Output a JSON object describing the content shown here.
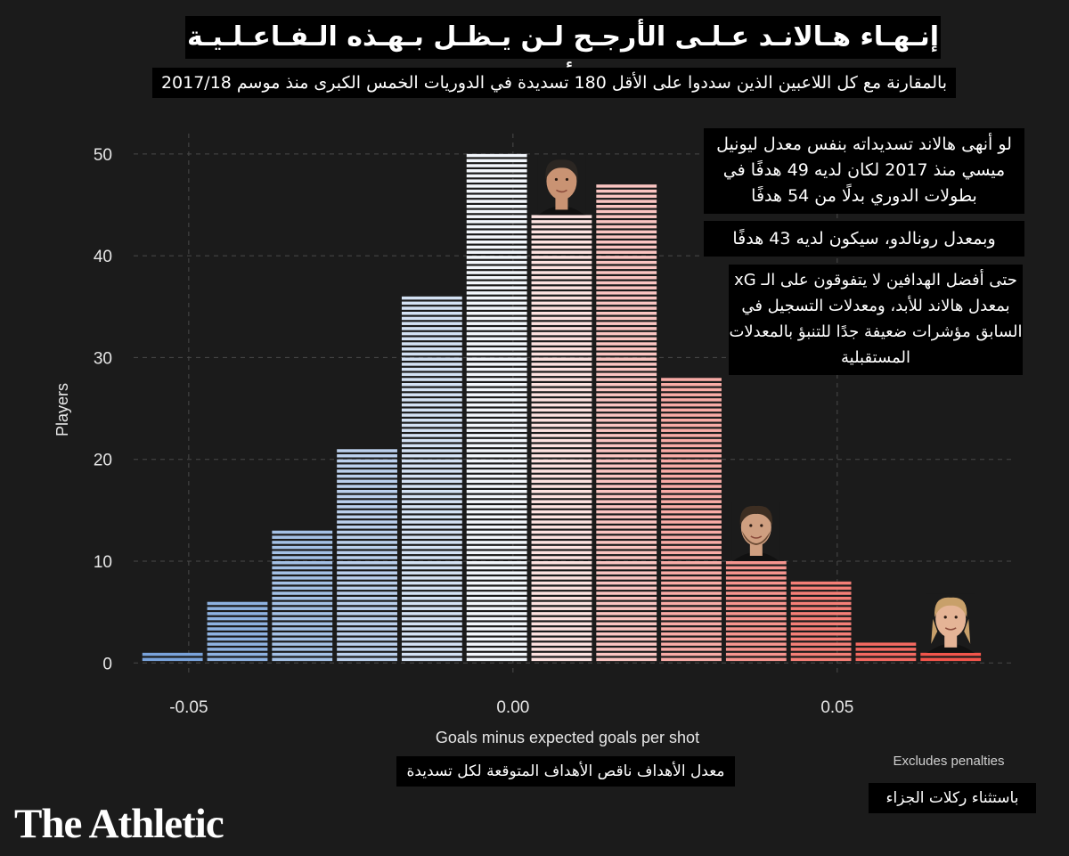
{
  "title": "إنـهـاء هـالانـد عـلـى الأرجـح لـن يـظـل بـهـذه الـفـاعـلـيـة للأبـد",
  "subtitle": "بالمقارنة مع كل اللاعبين الذين سددوا على الأقل 180 تسديدة في الدوريات الخمس الكبرى منذ موسم 2017/18",
  "notes": {
    "messi": "لو أنهى هالاند تسديداته بنفس معدل ليونيل ميسي منذ 2017 لكان لديه 49 هدفًا في بطولات الدوري بدلًا من 54 هدفًا",
    "ronaldo": "وبمعدل رونالدو، سيكون لديه 43 هدفًا",
    "best_scorers": "حتى أفضل الهدافين لا يتفوقون على الـ xG بمعدل هالاند للأبد، ومعدلات التسجيل في السابق مؤشرات ضعيفة جدًا للتنبؤ بالمعدلات المستقبلية"
  },
  "xlabel_ar": "معدل الأهداف ناقص الأهداف المتوقعة لكل تسديدة",
  "excludes_en": "Excludes penalties",
  "excludes_ar": "باستثناء ركلات الجزاء",
  "logo": "The Athletic",
  "player_markers": [
    {
      "name": "ronaldo",
      "bin": 6
    },
    {
      "name": "messi",
      "bin": 9
    },
    {
      "name": "haaland",
      "bin": 12
    }
  ],
  "chart_data": {
    "type": "bar",
    "xlabel": "Goals minus expected goals per shot",
    "ylabel": "Players",
    "x": [
      -0.0525,
      -0.0425,
      -0.0325,
      -0.0225,
      -0.0125,
      -0.0025,
      0.0075,
      0.0175,
      0.0275,
      0.0375,
      0.0475,
      0.0575,
      0.0675
    ],
    "values": [
      1,
      6,
      13,
      21,
      36,
      50,
      44,
      47,
      28,
      10,
      8,
      2,
      1
    ],
    "xlim": [
      -0.0585,
      0.0775
    ],
    "ylim": [
      -1.2,
      52
    ],
    "xticks": [
      -0.05,
      0.0,
      0.05
    ],
    "xtick_labels": [
      "-0.05",
      "0.00",
      "0.05"
    ],
    "yticks": [
      0,
      10,
      20,
      30,
      40,
      50
    ],
    "ytick_labels": [
      "0",
      "10",
      "20",
      "30",
      "40",
      "50"
    ],
    "grid": true,
    "colors": {
      "negative": "#5b8fd3",
      "neutral": "#ffffff",
      "positive": "#f2554b",
      "grid": "#4a4a4a"
    }
  }
}
